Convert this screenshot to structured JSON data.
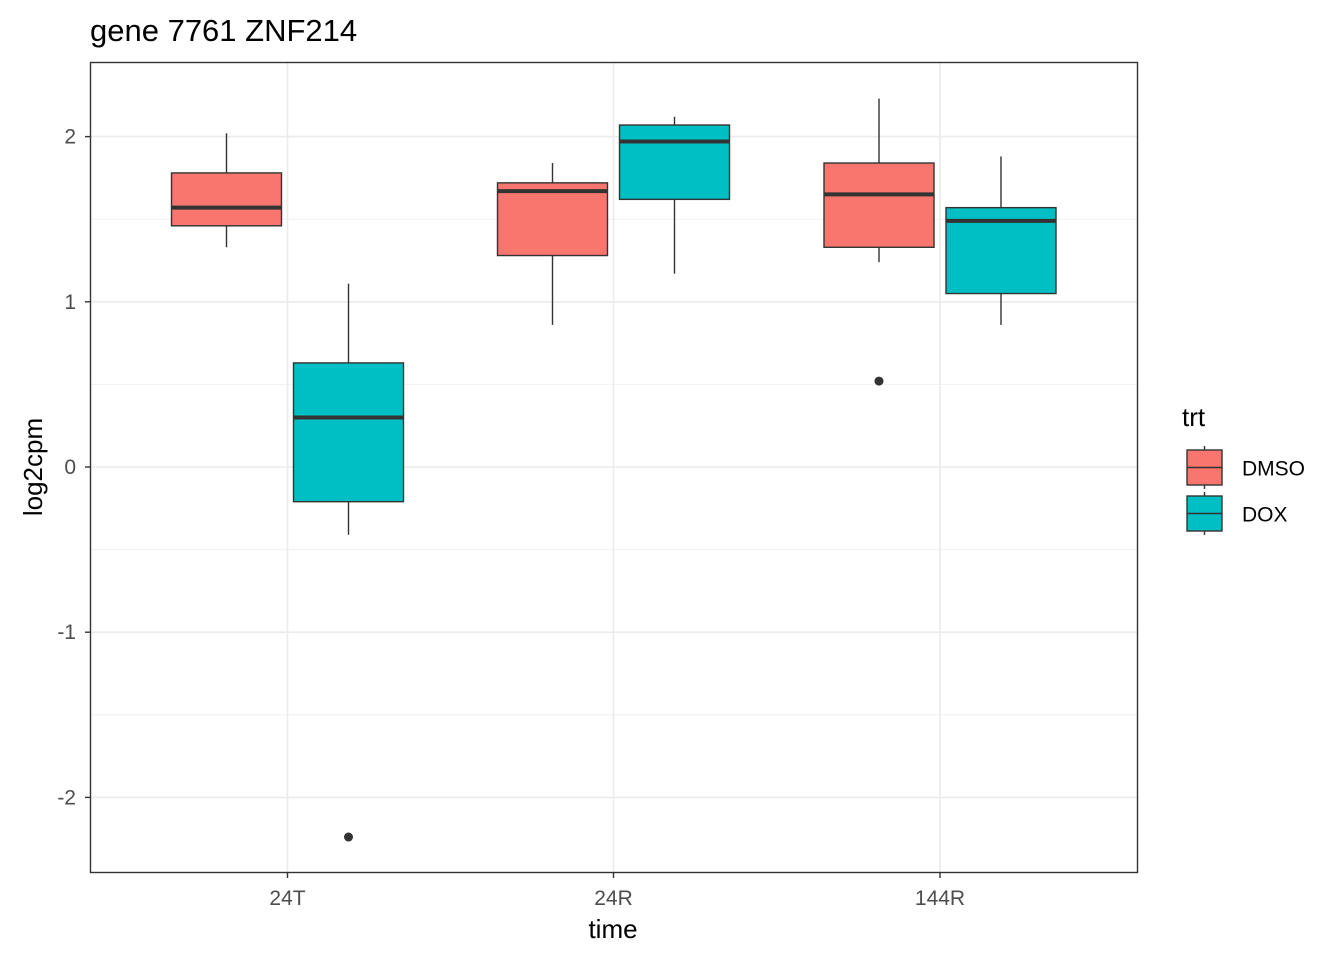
{
  "chart_data": {
    "type": "boxplot",
    "title": "gene 7761 ZNF214",
    "xlabel": "time",
    "ylabel": "log2cpm",
    "categories": [
      "24T",
      "24R",
      "144R"
    ],
    "ylim": [
      -2.45,
      2.45
    ],
    "yticks": [
      -2,
      -1,
      0,
      1,
      2
    ],
    "ytick_labels": [
      "-2",
      "-1",
      "0",
      "1",
      "2"
    ],
    "grid": true,
    "legend": {
      "title": "trt",
      "position": "right",
      "entries": [
        "DMSO",
        "DOX"
      ]
    },
    "series": [
      {
        "name": "DMSO",
        "color": "#F8766D",
        "boxes": [
          {
            "category": "24T",
            "whisker_low": 1.33,
            "q1": 1.46,
            "median": 1.57,
            "q3": 1.78,
            "whisker_high": 2.02,
            "outliers": []
          },
          {
            "category": "24R",
            "whisker_low": 0.86,
            "q1": 1.28,
            "median": 1.67,
            "q3": 1.72,
            "whisker_high": 1.84,
            "outliers": []
          },
          {
            "category": "144R",
            "whisker_low": 1.24,
            "q1": 1.33,
            "median": 1.65,
            "q3": 1.84,
            "whisker_high": 2.23,
            "outliers": [
              0.52
            ]
          }
        ]
      },
      {
        "name": "DOX",
        "color": "#00BFC4",
        "boxes": [
          {
            "category": "24T",
            "whisker_low": -0.41,
            "q1": -0.21,
            "median": 0.3,
            "q3": 0.63,
            "whisker_high": 1.11,
            "outliers": [
              -2.24
            ]
          },
          {
            "category": "24R",
            "whisker_low": 1.17,
            "q1": 1.62,
            "median": 1.97,
            "q3": 2.07,
            "whisker_high": 2.12,
            "outliers": []
          },
          {
            "category": "144R",
            "whisker_low": 0.86,
            "q1": 1.05,
            "median": 1.49,
            "q3": 1.57,
            "whisker_high": 1.88,
            "outliers": []
          }
        ]
      }
    ]
  }
}
